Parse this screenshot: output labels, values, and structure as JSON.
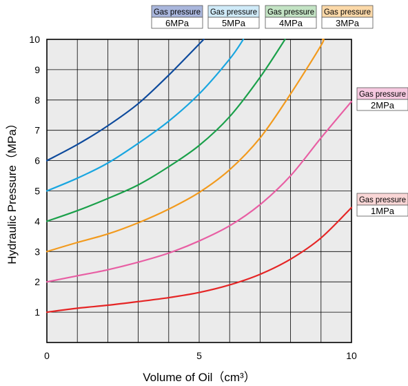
{
  "chart_data": {
    "type": "line",
    "title": "",
    "xlabel": "Volume of Oil（cm³）",
    "ylabel": "Hydraulic Pressure（MPa）",
    "xlim": [
      0,
      10
    ],
    "ylim": [
      0,
      10
    ],
    "x_ticks": [
      "0",
      "5",
      "10"
    ],
    "y_ticks": [
      "1",
      "2",
      "3",
      "4",
      "5",
      "6",
      "7",
      "8",
      "9",
      "10"
    ],
    "grid": true,
    "background_color": "#ebebeb",
    "series": [
      {
        "name": "Gas pressure 6MPa",
        "legend_title": "Gas pressure",
        "legend_value": "6MPa",
        "color": "#0d4a9c",
        "legend_bg": "#a9b6dc",
        "points": [
          [
            0,
            6.0
          ],
          [
            1,
            6.53
          ],
          [
            2,
            7.15
          ],
          [
            3,
            7.88
          ],
          [
            4,
            8.82
          ],
          [
            5.15,
            10.0
          ]
        ]
      },
      {
        "name": "Gas pressure 5MPa",
        "legend_title": "Gas pressure",
        "legend_value": "5MPa",
        "color": "#19a6e0",
        "legend_bg": "#cfeaf8",
        "points": [
          [
            0,
            5.0
          ],
          [
            1,
            5.42
          ],
          [
            2,
            5.92
          ],
          [
            3,
            6.57
          ],
          [
            4,
            7.3
          ],
          [
            5,
            8.2
          ],
          [
            6,
            9.35
          ],
          [
            6.45,
            10.0
          ]
        ]
      },
      {
        "name": "Gas pressure 4MPa",
        "legend_title": "Gas pressure",
        "legend_value": "4MPa",
        "color": "#1aa04a",
        "legend_bg": "#c3e3c4",
        "points": [
          [
            0,
            4.0
          ],
          [
            1,
            4.35
          ],
          [
            2,
            4.75
          ],
          [
            3,
            5.2
          ],
          [
            4,
            5.8
          ],
          [
            5,
            6.5
          ],
          [
            6,
            7.45
          ],
          [
            7,
            8.75
          ],
          [
            7.82,
            10.0
          ]
        ]
      },
      {
        "name": "Gas pressure 3MPa",
        "legend_title": "Gas pressure",
        "legend_value": "3MPa",
        "color": "#f29a1d",
        "legend_bg": "#fbd8a8",
        "points": [
          [
            0,
            3.0
          ],
          [
            1,
            3.3
          ],
          [
            2,
            3.58
          ],
          [
            3,
            3.95
          ],
          [
            4,
            4.4
          ],
          [
            5,
            4.95
          ],
          [
            6,
            5.7
          ],
          [
            7,
            6.75
          ],
          [
            8,
            8.2
          ],
          [
            9,
            9.8
          ],
          [
            9.05,
            10.0
          ]
        ]
      },
      {
        "name": "Gas pressure 2MPa",
        "legend_title": "Gas pressure",
        "legend_value": "2MPa",
        "color": "#e85ea3",
        "legend_bg": "#f6c9e0",
        "points": [
          [
            0,
            2.0
          ],
          [
            1,
            2.2
          ],
          [
            2,
            2.4
          ],
          [
            3,
            2.65
          ],
          [
            4,
            2.95
          ],
          [
            5,
            3.35
          ],
          [
            6,
            3.85
          ],
          [
            7,
            4.55
          ],
          [
            8,
            5.5
          ],
          [
            9,
            6.75
          ],
          [
            10,
            7.95
          ]
        ]
      },
      {
        "name": "Gas pressure 1MPa",
        "legend_title": "Gas pressure",
        "legend_value": "1MPa",
        "color": "#e52525",
        "legend_bg": "#f9d6d6",
        "points": [
          [
            0,
            1.0
          ],
          [
            1,
            1.13
          ],
          [
            2,
            1.23
          ],
          [
            3,
            1.35
          ],
          [
            4,
            1.48
          ],
          [
            5,
            1.65
          ],
          [
            6,
            1.9
          ],
          [
            7,
            2.25
          ],
          [
            8,
            2.75
          ],
          [
            9,
            3.45
          ],
          [
            10,
            4.45
          ]
        ]
      }
    ]
  }
}
